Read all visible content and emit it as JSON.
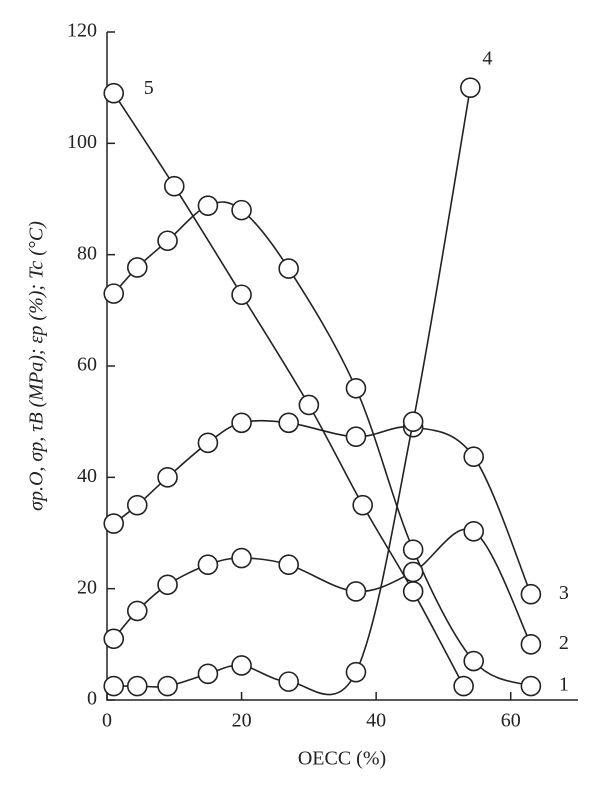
{
  "chart_data": {
    "type": "line",
    "x_label": "OECC (%)",
    "y_label": "σp.O, σp, τB (MPa); εp (%); Tc (°C)",
    "xlim": [
      0,
      70
    ],
    "xticks": [
      0,
      20,
      40,
      60
    ],
    "ylim": [
      0,
      120
    ],
    "yticks": [
      0,
      20,
      40,
      60,
      80,
      100,
      120
    ],
    "color": "#222222",
    "series": [
      {
        "name": "1",
        "x": [
          1,
          4.5,
          9,
          15,
          20,
          27,
          37,
          45.5,
          54.5,
          63
        ],
        "values": [
          73,
          77.7,
          82.5,
          88.8,
          88,
          77.5,
          56,
          27,
          7,
          2.5
        ]
      },
      {
        "name": "2",
        "x": [
          1,
          4.5,
          9,
          15,
          20,
          27,
          37,
          45.5,
          54.5,
          63
        ],
        "values": [
          11,
          16,
          20.7,
          24.3,
          25.5,
          24.3,
          19.5,
          23,
          30.3,
          10
        ]
      },
      {
        "name": "3",
        "x": [
          1,
          4.5,
          9,
          15,
          20,
          27,
          37,
          45.5,
          54.5,
          63
        ],
        "values": [
          31.7,
          35,
          40,
          46.2,
          49.8,
          49.8,
          47.3,
          49,
          43.7,
          19
        ]
      },
      {
        "name": "4",
        "x": [
          1,
          4.5,
          9,
          15,
          20,
          27,
          37,
          45.5,
          54
        ],
        "values": [
          2.5,
          2.5,
          2.5,
          4.7,
          6.2,
          3.3,
          5,
          50,
          110
        ]
      },
      {
        "name": "5",
        "x": [
          1,
          10,
          20,
          30,
          38,
          45.5,
          53
        ],
        "values": [
          109,
          92.3,
          72.8,
          53,
          35,
          19.5,
          2.5
        ]
      }
    ]
  }
}
